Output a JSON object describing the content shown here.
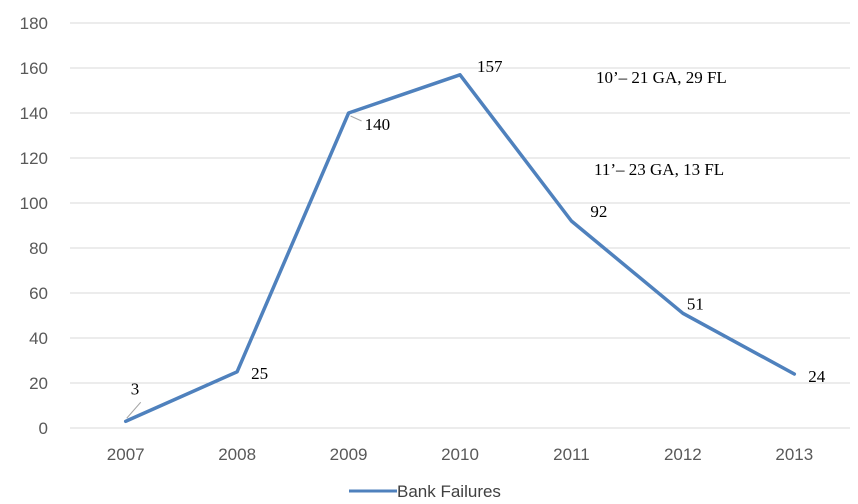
{
  "chart_data": {
    "type": "line",
    "categories": [
      "2007",
      "2008",
      "2009",
      "2010",
      "2011",
      "2012",
      "2013"
    ],
    "series": [
      {
        "name": "Bank Failures",
        "values": [
          3,
          25,
          140,
          157,
          92,
          51,
          24
        ],
        "color": "#4f81bd"
      }
    ],
    "data_labels": [
      "3",
      "25",
      "140",
      "157",
      "92",
      "51",
      "24"
    ],
    "ylim": [
      0,
      180
    ],
    "yticks": [
      0,
      20,
      40,
      60,
      80,
      100,
      120,
      140,
      160,
      180
    ],
    "grid": true,
    "legend_position": "bottom",
    "annotations": [
      "10’– 21 GA, 29 FL",
      "11’– 23 GA, 13 FL"
    ],
    "title": "",
    "xlabel": "",
    "ylabel": ""
  }
}
